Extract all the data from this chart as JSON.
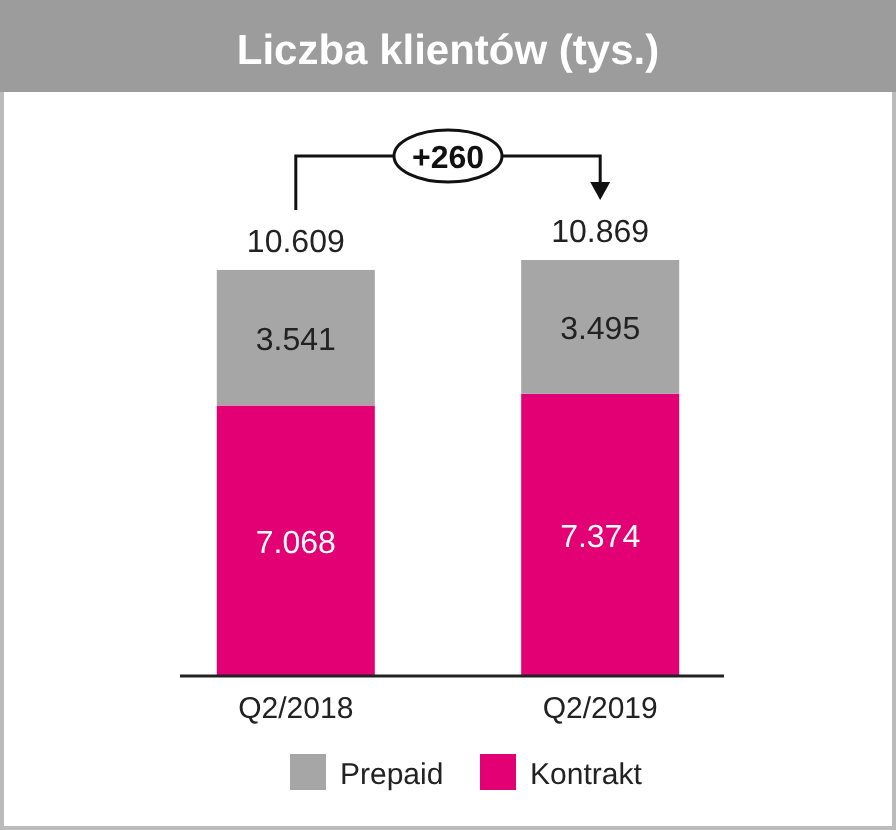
{
  "chart_data": {
    "type": "bar",
    "title": "Liczba klientów (tys.)",
    "categories": [
      "Q2/2018",
      "Q2/2019"
    ],
    "stacked": true,
    "legend": "bottom",
    "series": [
      {
        "name": "Kontrakt",
        "color": "#e20074",
        "values": [
          7068,
          7374
        ],
        "value_labels": [
          "7.068",
          "7.374"
        ]
      },
      {
        "name": "Prepaid",
        "color": "#a6a6a6",
        "values": [
          3541,
          3495
        ],
        "value_labels": [
          "3.541",
          "3.495"
        ]
      }
    ],
    "totals": [
      "10.609",
      "10.869"
    ],
    "annotations": [
      "+260"
    ]
  }
}
